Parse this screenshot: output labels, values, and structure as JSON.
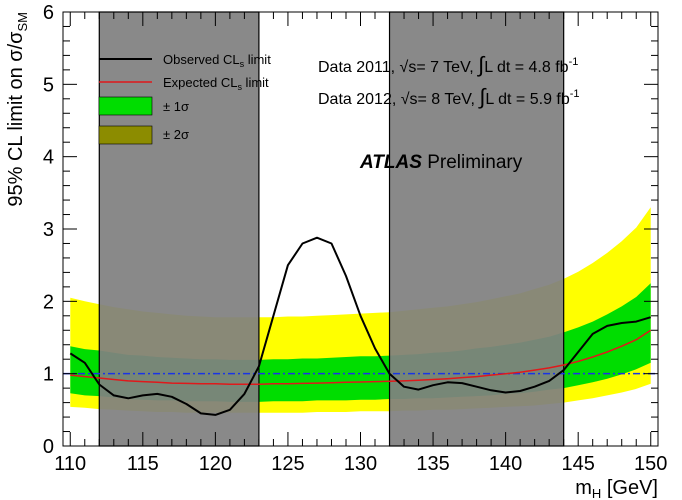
{
  "chart_data": {
    "type": "line",
    "xlabel": "m",
    "xlabel_sub": "H",
    "xlabel_unit": " [GeV]",
    "ylabel_prefix": "95% CL limit on σ/σ",
    "ylabel_sub": "SM",
    "xlim": [
      109.5,
      150.5
    ],
    "ylim": [
      0,
      6
    ],
    "x_ticks": [
      110,
      115,
      120,
      125,
      130,
      135,
      140,
      145,
      150
    ],
    "y_ticks": [
      0,
      1,
      2,
      3,
      4,
      5,
      6
    ],
    "reference_line_y": 1,
    "excluded_regions": [
      [
        112,
        123
      ],
      [
        132,
        144
      ]
    ],
    "x": [
      110,
      111,
      112,
      113,
      114,
      115,
      116,
      117,
      118,
      119,
      120,
      121,
      122,
      123,
      124,
      125,
      126,
      127,
      128,
      129,
      130,
      131,
      132,
      133,
      134,
      135,
      136,
      137,
      138,
      139,
      140,
      141,
      142,
      143,
      144,
      145,
      146,
      147,
      148,
      149,
      150
    ],
    "series": [
      {
        "name": "Observed CLs limit",
        "values": [
          1.28,
          1.15,
          0.85,
          0.7,
          0.66,
          0.7,
          0.72,
          0.68,
          0.58,
          0.45,
          0.43,
          0.5,
          0.72,
          1.1,
          1.8,
          2.5,
          2.8,
          2.88,
          2.8,
          2.35,
          1.8,
          1.35,
          1.0,
          0.82,
          0.78,
          0.84,
          0.88,
          0.87,
          0.82,
          0.77,
          0.74,
          0.76,
          0.82,
          0.9,
          1.05,
          1.3,
          1.55,
          1.66,
          1.7,
          1.72,
          1.78
        ]
      },
      {
        "name": "Expected CLs limit",
        "values": [
          0.98,
          0.96,
          0.94,
          0.92,
          0.9,
          0.89,
          0.88,
          0.87,
          0.865,
          0.86,
          0.86,
          0.855,
          0.855,
          0.855,
          0.86,
          0.86,
          0.865,
          0.87,
          0.875,
          0.88,
          0.885,
          0.89,
          0.895,
          0.9,
          0.91,
          0.92,
          0.93,
          0.945,
          0.96,
          0.98,
          1.0,
          1.02,
          1.05,
          1.08,
          1.12,
          1.17,
          1.23,
          1.3,
          1.38,
          1.47,
          1.6
        ]
      }
    ],
    "band_1sigma": {
      "name": "± 1σ",
      "lower": [
        0.73,
        0.7,
        0.69,
        0.67,
        0.65,
        0.64,
        0.63,
        0.63,
        0.62,
        0.62,
        0.62,
        0.61,
        0.61,
        0.61,
        0.62,
        0.62,
        0.62,
        0.63,
        0.63,
        0.63,
        0.64,
        0.64,
        0.65,
        0.65,
        0.66,
        0.66,
        0.67,
        0.68,
        0.69,
        0.7,
        0.72,
        0.73,
        0.75,
        0.78,
        0.8,
        0.84,
        0.88,
        0.93,
        0.99,
        1.06,
        1.15
      ],
      "upper": [
        1.38,
        1.34,
        1.32,
        1.29,
        1.26,
        1.25,
        1.23,
        1.22,
        1.21,
        1.2,
        1.2,
        1.19,
        1.19,
        1.19,
        1.2,
        1.2,
        1.21,
        1.21,
        1.22,
        1.23,
        1.24,
        1.24,
        1.25,
        1.26,
        1.27,
        1.29,
        1.3,
        1.32,
        1.35,
        1.37,
        1.4,
        1.43,
        1.47,
        1.51,
        1.57,
        1.64,
        1.72,
        1.82,
        1.93,
        2.06,
        2.25
      ]
    },
    "band_2sigma": {
      "name": "± 2σ",
      "lower": [
        0.54,
        0.53,
        0.51,
        0.5,
        0.49,
        0.48,
        0.47,
        0.47,
        0.46,
        0.46,
        0.46,
        0.46,
        0.46,
        0.46,
        0.46,
        0.46,
        0.46,
        0.47,
        0.47,
        0.47,
        0.48,
        0.48,
        0.48,
        0.49,
        0.49,
        0.5,
        0.5,
        0.51,
        0.52,
        0.53,
        0.54,
        0.55,
        0.56,
        0.58,
        0.6,
        0.63,
        0.66,
        0.7,
        0.74,
        0.79,
        0.86
      ],
      "upper": [
        2.05,
        2.0,
        1.96,
        1.92,
        1.89,
        1.86,
        1.84,
        1.82,
        1.8,
        1.79,
        1.78,
        1.78,
        1.78,
        1.78,
        1.78,
        1.79,
        1.79,
        1.8,
        1.81,
        1.82,
        1.83,
        1.84,
        1.85,
        1.87,
        1.89,
        1.91,
        1.93,
        1.96,
        1.99,
        2.03,
        2.07,
        2.11,
        2.17,
        2.23,
        2.31,
        2.41,
        2.53,
        2.67,
        2.83,
        3.02,
        3.3
      ]
    },
    "legend": {
      "placement": "top-left",
      "observed": "Observed CL",
      "observed_sub": "s",
      "observed_suffix": " limit",
      "expected": "Expected CL",
      "expected_sub": "s",
      "expected_suffix": " limit",
      "one_sigma": "± 1σ",
      "two_sigma": "± 2σ"
    },
    "annotations": {
      "data2011_prefix": "Data 2011, ",
      "data2011_root": "√s",
      "data2011_mid": "= 7 TeV, ",
      "data2011_int": "∫",
      "data2011_lumi": "L dt = 4.8 fb",
      "data2011_sup": "-1",
      "data2012_prefix": "Data 2012, ",
      "data2012_root": "√s",
      "data2012_mid": "= 8 TeV, ",
      "data2012_int": "∫",
      "data2012_lumi": "L dt = 5.9 fb",
      "data2012_sup": "-1",
      "atlas": "ATLAS",
      "atlas_suffix": " Preliminary"
    },
    "colors": {
      "observed": "#000000",
      "expected": "#e0191b",
      "band_1sigma": "#00dd00",
      "band_2sigma": "#ffff00",
      "legend_2sigma_swatch": "#8c8c00",
      "excluded": "#808080",
      "reference": "#1a33e6"
    },
    "grid": false
  }
}
